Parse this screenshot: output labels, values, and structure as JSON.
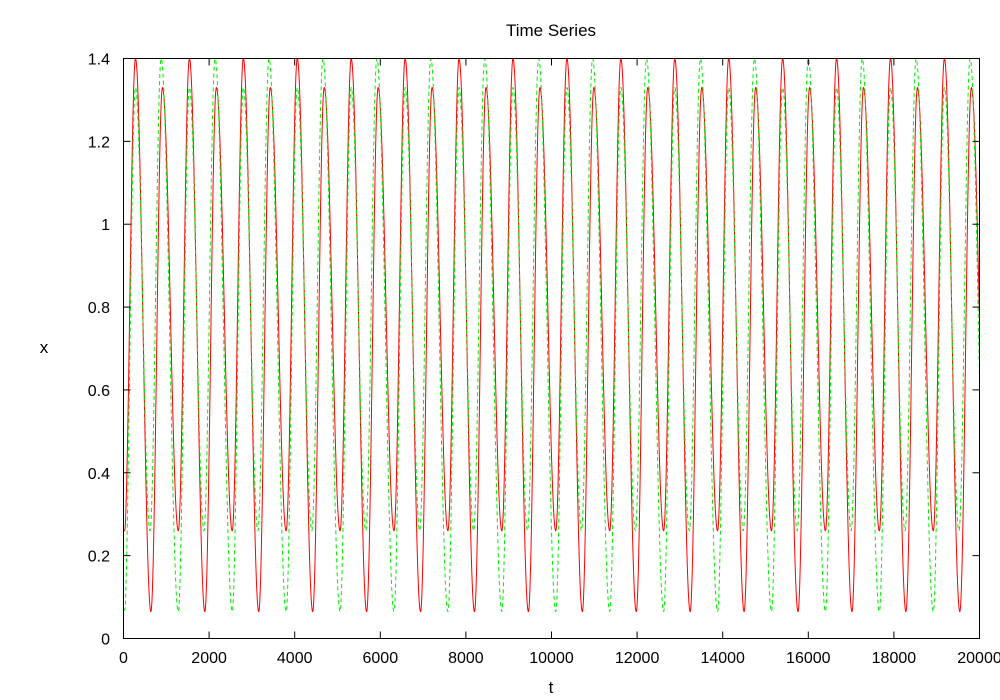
{
  "chart_data": {
    "type": "line",
    "title": "Time Series",
    "xlabel": "t",
    "ylabel": "x",
    "xlim": [
      0,
      20000
    ],
    "ylim": [
      0,
      1.4
    ],
    "grid": false,
    "legend": "none",
    "x_ticks": [
      "0",
      "2000",
      "4000",
      "6000",
      "8000",
      "10000",
      "12000",
      "14000",
      "16000",
      "18000",
      "20000"
    ],
    "y_ticks": [
      "0",
      "0.2",
      "0.4",
      "0.6",
      "0.8",
      "1",
      "1.2",
      "1.4"
    ],
    "series": [
      {
        "color": "#ff0000",
        "dash": "solid",
        "period": 1260,
        "t_trough_low": 640,
        "t_peak_high": 280,
        "t_peak_low": 910,
        "t_trough_high": 1280,
        "x_start": 0.26,
        "peak_high": 1.4,
        "peak_low": 1.33,
        "trough_high": 0.26,
        "trough_low": 0.065
      },
      {
        "color": "#00ee00",
        "dash": "dashed",
        "period": 1260,
        "t_trough_low": 20,
        "t_peak_high": 880,
        "t_peak_low": 280,
        "t_trough_high": 620,
        "x_start": 0.07,
        "peak_high": 1.4,
        "peak_low": 1.33,
        "trough_high": 0.26,
        "trough_low": 0.065
      }
    ]
  }
}
